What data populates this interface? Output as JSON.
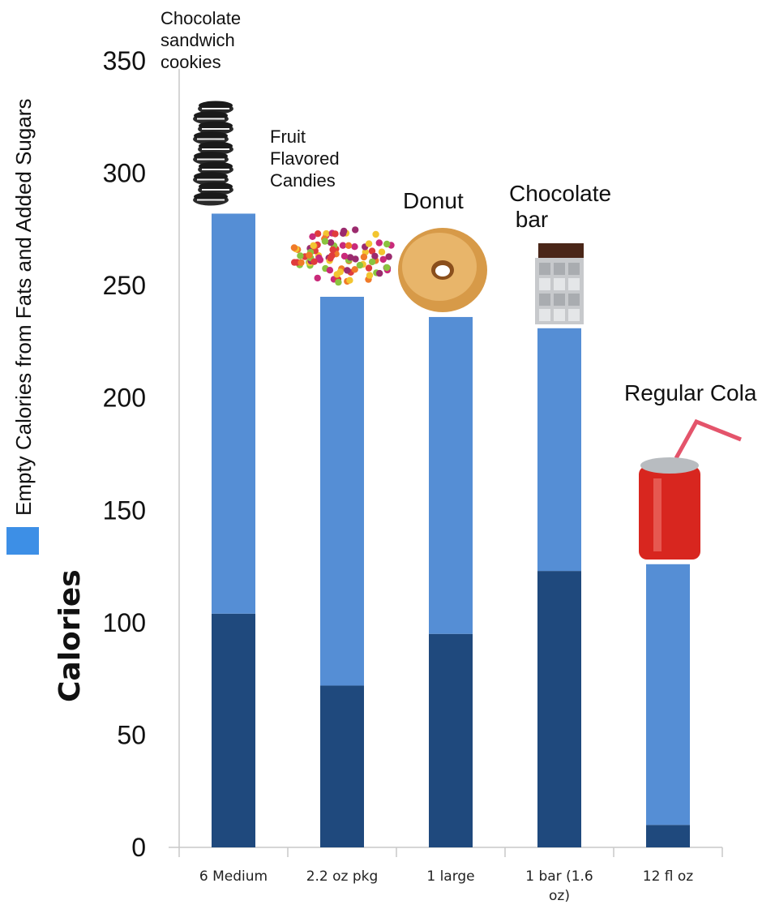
{
  "chart_data": {
    "type": "bar",
    "stacked": true,
    "categories": [
      "6 Medium",
      "2.2 oz pkg",
      "1 large",
      "1 bar (1.6 oz)",
      "12 fl oz"
    ],
    "category_lines": [
      [
        "6 Medium"
      ],
      [
        "2.2 oz pkg"
      ],
      [
        "1 large"
      ],
      [
        "1 bar (1.6",
        "oz)"
      ],
      [
        "12 fl oz"
      ]
    ],
    "food_labels": [
      [
        "Chocolate",
        "sandwich",
        "cookies"
      ],
      [
        "Fruit",
        "Flavored",
        "Candies"
      ],
      [
        "Donut"
      ],
      [
        "Chocolate",
        " bar"
      ],
      [
        "Regular Cola"
      ]
    ],
    "series": [
      {
        "values": [
          104,
          72,
          95,
          123,
          10
        ],
        "color": "#1F497D"
      },
      {
        "name": "Empty Calories from Fats and Added Sugars",
        "values": [
          178,
          173,
          141,
          108,
          116
        ],
        "color": "#558ED5"
      }
    ],
    "ylabel": "Calories",
    "yticks": [
      0,
      50,
      100,
      150,
      200,
      250,
      300,
      350
    ],
    "ylim": [
      0,
      350
    ],
    "legend_position": "left, rotated",
    "legend_color": "#3D8FE6",
    "grid": false,
    "images": [
      "cookie-stack",
      "candy-pile",
      "donut",
      "chocolate-bar",
      "soda-can"
    ]
  }
}
